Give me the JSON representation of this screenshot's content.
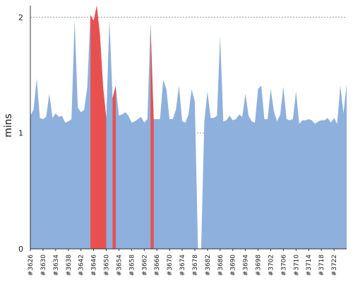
{
  "chart_data": {
    "type": "area",
    "ylabel": "mins",
    "ylim": [
      0,
      2.1
    ],
    "yticks": [
      0,
      1,
      2
    ],
    "grid": true,
    "colors": {
      "pass": "#8eb0dc",
      "fail": "#e85050",
      "grid": "#999999"
    },
    "build_start": 3626,
    "build_end": 3726,
    "x_tick_labels": [
      "#3626",
      "#3630",
      "#3634",
      "#3638",
      "#3642",
      "#3646",
      "#3650",
      "#3654",
      "#3658",
      "#3662",
      "#3666",
      "#3670",
      "#3674",
      "#3678",
      "#3682",
      "#3686",
      "#3690",
      "#3694",
      "#3698",
      "#3702",
      "#3706",
      "#3710",
      "#3714",
      "#3718",
      "#3722"
    ],
    "values": [
      1.15,
      1.2,
      1.47,
      1.13,
      1.12,
      1.14,
      1.34,
      1.13,
      1.17,
      1.14,
      1.15,
      1.09,
      1.1,
      1.12,
      1.98,
      1.22,
      1.18,
      1.2,
      1.4,
      2.02,
      1.97,
      2.1,
      1.85,
      1.4,
      1.13,
      1.98,
      1.3,
      1.41,
      1.15,
      1.16,
      1.18,
      1.15,
      1.09,
      1.1,
      1.12,
      1.14,
      1.09,
      1.12,
      1.94,
      1.12,
      1.12,
      1.12,
      1.46,
      1.38,
      1.12,
      1.12,
      1.2,
      1.41,
      1.1,
      1.09,
      1.16,
      1.38,
      1.27,
      0.0,
      0.0,
      1.1,
      1.36,
      1.13,
      1.13,
      1.15,
      1.84,
      1.1,
      1.11,
      1.15,
      1.11,
      1.12,
      1.16,
      1.14,
      1.34,
      1.15,
      1.1,
      1.09,
      1.38,
      1.41,
      1.12,
      1.12,
      1.38,
      1.19,
      1.1,
      1.16,
      1.4,
      1.12,
      1.11,
      1.12,
      1.36,
      1.08,
      1.11,
      1.11,
      1.12,
      1.11,
      1.08,
      1.1,
      1.11,
      1.11,
      1.13,
      1.09,
      1.13,
      1.08,
      1.41,
      1.17,
      1.42
    ],
    "failed_builds": [
      [
        3645,
        3650
      ],
      [
        3652,
        3653
      ],
      [
        3664,
        3665
      ],
      [
        3679,
        3680
      ]
    ]
  }
}
